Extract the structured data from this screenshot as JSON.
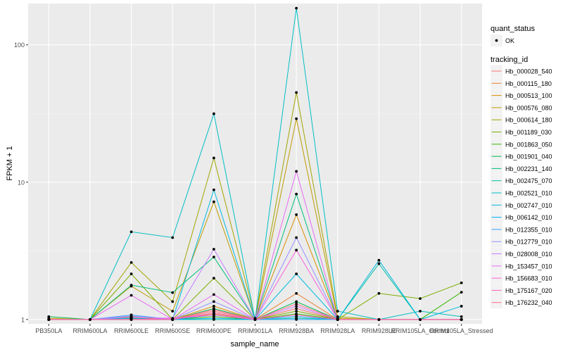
{
  "chart_data": {
    "type": "line",
    "title": "",
    "xlabel": "sample_name",
    "ylabel": "FPKM + 1",
    "yscale": "log10",
    "ylim": [
      0.93,
      200
    ],
    "grid": true,
    "legend_placement": "right",
    "categories": [
      "PB350LA",
      "RRIM600LA",
      "RRIM600LE",
      "RRIM600SE",
      "RRIM600PE",
      "RRIM901LA",
      "RRIM928BA",
      "RRIM928LA",
      "RRIM928LE",
      "RRIM105LA_Control",
      "RRIM105LA_Stressed"
    ],
    "y_ticks": [
      1,
      10,
      100
    ],
    "y_tick_labels": [
      "1",
      "10",
      "100"
    ],
    "legend": {
      "quant_status": {
        "title": "quant_status",
        "items": [
          "OK"
        ]
      },
      "tracking_id": {
        "title": "tracking_id"
      }
    },
    "series": [
      {
        "name": "Hb_000028_540",
        "color": "#F8766D",
        "values": [
          1.0,
          1.0,
          1.03,
          1.0,
          1.15,
          1.0,
          1.2,
          1.0,
          1.0,
          1.0,
          1.0
        ]
      },
      {
        "name": "Hb_000115_180",
        "color": "#EA8331",
        "values": [
          1.0,
          1.0,
          1.02,
          1.0,
          1.1,
          1.0,
          1.55,
          1.0,
          1.0,
          1.0,
          1.0
        ]
      },
      {
        "name": "Hb_000513_100",
        "color": "#D89000",
        "values": [
          1.0,
          1.0,
          1.05,
          1.0,
          1.25,
          1.0,
          5.8,
          1.0,
          1.0,
          1.0,
          1.0
        ]
      },
      {
        "name": "Hb_000576_080",
        "color": "#C09B00",
        "values": [
          1.02,
          1.0,
          1.75,
          1.15,
          7.2,
          1.0,
          29,
          1.02,
          1.0,
          1.0,
          1.0
        ]
      },
      {
        "name": "Hb_000614_180",
        "color": "#A3A500",
        "values": [
          1.0,
          1.0,
          2.6,
          1.35,
          15,
          1.02,
          45,
          1.05,
          1.0,
          1.0,
          1.0
        ]
      },
      {
        "name": "Hb_001189_030",
        "color": "#7CAE00",
        "values": [
          1.0,
          1.0,
          2.15,
          1.0,
          2.0,
          1.0,
          1.15,
          1.0,
          1.55,
          1.42,
          1.85
        ]
      },
      {
        "name": "Hb_001863_050",
        "color": "#39B600",
        "values": [
          1.0,
          1.0,
          1.02,
          1.0,
          1.05,
          1.0,
          1.1,
          1.0,
          1.0,
          1.0,
          1.58
        ]
      },
      {
        "name": "Hb_001901_040",
        "color": "#00BB4E",
        "values": [
          1.05,
          1.0,
          1.02,
          1.0,
          1.2,
          1.0,
          1.35,
          1.0,
          1.0,
          1.0,
          1.0
        ]
      },
      {
        "name": "Hb_002231_140",
        "color": "#00BF7D",
        "values": [
          1.0,
          1.0,
          1.78,
          1.57,
          2.85,
          1.0,
          8.2,
          1.0,
          1.0,
          1.0,
          1.0
        ]
      },
      {
        "name": "Hb_002475_070",
        "color": "#00C1A3",
        "values": [
          1.0,
          1.0,
          1.0,
          1.0,
          1.0,
          1.0,
          1.02,
          1.0,
          2.55,
          1.0,
          1.0
        ]
      },
      {
        "name": "Hb_002521_010",
        "color": "#00BFC4",
        "values": [
          1.0,
          1.0,
          4.35,
          3.95,
          31.5,
          1.0,
          185,
          1.15,
          1.0,
          1.15,
          1.05
        ]
      },
      {
        "name": "Hb_002747_010",
        "color": "#00BAE0",
        "values": [
          1.0,
          1.0,
          1.02,
          1.0,
          8.8,
          1.0,
          2.15,
          1.0,
          2.7,
          1.0,
          1.25
        ]
      },
      {
        "name": "Hb_006142_010",
        "color": "#00B0F6",
        "values": [
          1.0,
          1.0,
          1.0,
          1.0,
          1.02,
          1.0,
          1.05,
          1.0,
          1.0,
          1.0,
          1.0
        ]
      },
      {
        "name": "Hb_012355_010",
        "color": "#35A2FF",
        "values": [
          1.0,
          1.0,
          1.08,
          1.0,
          1.08,
          1.0,
          1.0,
          1.0,
          1.0,
          1.0,
          1.0
        ]
      },
      {
        "name": "Hb_012779_010",
        "color": "#9590FF",
        "values": [
          1.0,
          1.0,
          1.06,
          1.0,
          1.35,
          1.0,
          3.95,
          1.0,
          1.0,
          1.0,
          1.0
        ]
      },
      {
        "name": "Hb_028008_010",
        "color": "#C77CFF",
        "values": [
          1.0,
          1.0,
          1.04,
          1.02,
          3.25,
          1.0,
          1.25,
          1.0,
          1.0,
          1.0,
          1.0
        ]
      },
      {
        "name": "Hb_153457_010",
        "color": "#E76BF3",
        "values": [
          1.0,
          1.0,
          1.5,
          1.0,
          1.52,
          1.0,
          12,
          1.0,
          1.0,
          1.0,
          1.0
        ]
      },
      {
        "name": "Hb_156683_010",
        "color": "#FA62DB",
        "values": [
          1.0,
          1.0,
          1.0,
          1.02,
          1.08,
          1.0,
          3.2,
          1.0,
          1.0,
          1.0,
          1.0
        ]
      },
      {
        "name": "Hb_175167_020",
        "color": "#FF62BC",
        "values": [
          1.0,
          1.0,
          1.0,
          1.0,
          1.12,
          1.0,
          1.08,
          1.0,
          1.0,
          1.0,
          1.0
        ]
      },
      {
        "name": "Hb_176232_040",
        "color": "#FF6C91",
        "values": [
          1.0,
          1.0,
          1.0,
          1.0,
          1.18,
          1.0,
          1.3,
          1.0,
          1.0,
          1.0,
          1.0
        ]
      }
    ]
  }
}
